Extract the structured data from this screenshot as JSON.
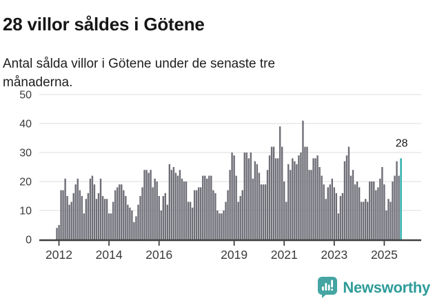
{
  "header": {
    "title": "28 villor såldes i Götene",
    "subtitle": "Antal sålda villor i Götene under de senaste tre månaderna."
  },
  "chart_data": {
    "type": "bar",
    "title": "28 villor såldes i Götene",
    "subtitle": "Antal sålda villor i Götene under de senaste tre månaderna.",
    "x_axis": {
      "tick_labels": [
        "2012",
        "2014",
        "2016",
        "2019",
        "2021",
        "2023",
        "2025"
      ],
      "start": "2011-12",
      "frequency": "monthly"
    },
    "y_axis": {
      "ticks": [
        0,
        10,
        20,
        30,
        40,
        50
      ],
      "range": [
        0,
        50
      ]
    },
    "grid": true,
    "legend": false,
    "annotation": {
      "label": "28",
      "target": "last-bar"
    },
    "highlight_index": 165,
    "values": [
      4,
      5,
      17,
      17,
      21,
      15,
      12,
      13,
      16,
      19,
      21,
      17,
      15,
      9,
      14,
      16,
      21,
      22,
      19,
      14,
      16,
      21,
      15,
      14,
      14,
      9,
      9,
      13,
      17,
      18,
      19,
      19,
      17,
      15,
      12,
      11,
      10,
      6,
      8,
      12,
      15,
      18,
      24,
      24,
      23,
      24,
      18,
      21,
      20,
      15,
      10,
      15,
      16,
      12,
      26,
      24,
      25,
      23,
      22,
      24,
      21,
      20,
      20,
      13,
      13,
      11,
      17,
      17,
      18,
      18,
      22,
      22,
      21,
      22,
      22,
      17,
      16,
      10,
      9,
      9,
      10,
      13,
      17,
      24,
      30,
      29,
      22,
      13,
      15,
      17,
      30,
      30,
      28,
      30,
      21,
      27,
      26,
      23,
      19,
      19,
      19,
      24,
      29,
      32,
      32,
      28,
      28,
      39,
      32,
      20,
      13,
      26,
      24,
      28,
      27,
      26,
      29,
      30,
      41,
      32,
      32,
      24,
      24,
      28,
      28,
      29,
      25,
      22,
      19,
      14,
      18,
      19,
      21,
      18,
      16,
      9,
      15,
      16,
      27,
      29,
      32,
      22,
      24,
      19,
      20,
      18,
      13,
      13,
      14,
      13,
      20,
      20,
      20,
      17,
      18,
      21,
      25,
      19,
      10,
      14,
      13,
      20,
      22,
      27,
      22,
      28
    ]
  },
  "colors": {
    "accent": "#2aacaa",
    "bar": "#6e6e77",
    "grid": "#dedede",
    "axis": "#3f3f3f",
    "tick-text": "#3a3a3a",
    "title-color": "#161616",
    "subtitle-color": "#1e1e1e",
    "logo-icon-color": "#44a5a3",
    "logo-text-color": "#2e9c9a"
  },
  "footer": {
    "brand": "Newsworthy"
  }
}
